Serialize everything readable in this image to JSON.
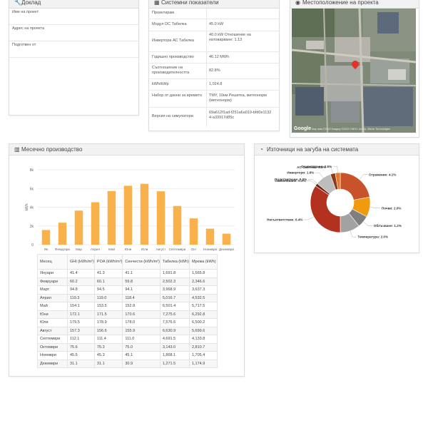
{
  "report": {
    "title": "Доклад",
    "rows": [
      {
        "label": "Име на проект",
        "value": ""
      },
      {
        "label": "Адрес на проекта",
        "value": ""
      },
      {
        "label": "Подготвен от",
        "value": ""
      }
    ]
  },
  "system": {
    "title": "Системни показатели",
    "rows": [
      {
        "label": "Проектирам",
        "value": ""
      },
      {
        "label": "Модул DC Табелка",
        "value": "45.0 kW"
      },
      {
        "label": "Инвертора АС Табелка",
        "value": "40.0 kW Отношение на натоварване: 1.13"
      },
      {
        "label": "Годишно производство",
        "value": "46.12 MWh"
      },
      {
        "label": "Съотношение на производителността",
        "value": "82.8%"
      },
      {
        "label": "kWh/kWp",
        "value": "1,024.8"
      },
      {
        "label": "Набор от данни за времето",
        "value": "TMY, 10км Решетка, метеонорм (метеонорм)"
      },
      {
        "label": "Версия на симулатора",
        "value": "69a612f1ad-f251a6a019-bfd0e11324-a33917d85c"
      }
    ]
  },
  "location": {
    "title": "Местоположение на проекта",
    "attribution": "Google",
    "footer": "Map data ©2022 Imagery ©2022 CNES / Airbus, Maxar Technologies"
  },
  "monthly": {
    "title": "Месечно производство",
    "table": {
      "headers": [
        "Месец",
        "GHI (kWh/m²)",
        "POA (kWh/m²)",
        "Сенчести (kWh/m²)",
        "Табелка (kWh)",
        "Мрежа (kWh)"
      ],
      "rows": [
        [
          "Януари",
          "41.4",
          "41.3",
          "41.1",
          "1,691.8",
          "1,565.8"
        ],
        [
          "Февруари",
          "60.2",
          "60.1",
          "59.8",
          "2,502.3",
          "2,346.6"
        ],
        [
          "Март",
          "94.8",
          "94.5",
          "94.1",
          "3,968.9",
          "3,637.3"
        ],
        [
          "Април",
          "119.3",
          "119.0",
          "118.4",
          "5,016.7",
          "4,532.5"
        ],
        [
          "Май",
          "154.1",
          "153.5",
          "152.8",
          "6,501.4",
          "5,717.5"
        ],
        [
          "Юни",
          "172.1",
          "171.5",
          "170.6",
          "7,275.6",
          "6,292.8"
        ],
        [
          "Юли",
          "179.5",
          "178.9",
          "178.0",
          "7,576.6",
          "6,500.2"
        ],
        [
          "Август",
          "157.3",
          "156.6",
          "155.9",
          "6,630.9",
          "5,699.6"
        ],
        [
          "Септември",
          "112.1",
          "111.4",
          "111.0",
          "4,691.5",
          "4,133.8"
        ],
        [
          "Октомври",
          "75.6",
          "75.3",
          "75.0",
          "3,143.0",
          "2,810.7"
        ],
        [
          "Ноември",
          "45.5",
          "45.3",
          "45.1",
          "1,868.1",
          "1,705.4"
        ],
        [
          "Декември",
          "31.1",
          "31.1",
          "30.9",
          "1,271.5",
          "1,174.9"
        ]
      ]
    }
  },
  "losses": {
    "title": "Източници на загуба на системата"
  },
  "chart_data": [
    {
      "type": "bar",
      "title": "",
      "ylabel": "kWh",
      "xlabel": "",
      "ylim": [
        0,
        8000
      ],
      "yticks": [
        "0",
        "2k",
        "4k",
        "6k",
        "8k"
      ],
      "categories": [
        "Ян",
        "Февруари",
        "Мар",
        "Април",
        "Май",
        "Юни",
        "Юли",
        "Август",
        "Септември",
        "Окт",
        "Ноември",
        "Декември"
      ],
      "values": [
        1565.8,
        2346.6,
        3637.3,
        4532.5,
        5717.5,
        6292.8,
        6500.2,
        5699.6,
        4133.8,
        2810.7,
        1705.4,
        1174.9
      ],
      "color": "#f9b24b",
      "grid": true
    },
    {
      "type": "pie",
      "title": "",
      "slices": [
        {
          "label": "Отражение: 4.1%",
          "value": 4.1,
          "color": "#c8532a"
        },
        {
          "label": "Почви: 2.0%",
          "value": 2.0,
          "color": "#f19a0e"
        },
        {
          "label": "Облъчване: 1.2%",
          "value": 1.2,
          "color": "#7f7f7f"
        },
        {
          "label": "Температура: 2.0%",
          "value": 2.0,
          "color": "#a2a2a2"
        },
        {
          "label": "Несъответствие: 6.4%",
          "value": 6.4,
          "color": "#b3311f"
        },
        {
          "label": "Окабеляване: 0.3%",
          "value": 0.3,
          "color": "#6a2a14"
        },
        {
          "label": "Подстригване: 0.0%",
          "value": 0.0,
          "color": "#d9d9d9"
        },
        {
          "label": "Инвертори: 1.6%",
          "value": 1.6,
          "color": "#bdbdbd"
        },
        {
          "label": "AC Система: 0.5%",
          "value": 0.5,
          "color": "#8c3a1a"
        },
        {
          "label": "Осцветяване: 0.5%",
          "value": 0.5,
          "color": "#e37b2c"
        }
      ]
    }
  ]
}
